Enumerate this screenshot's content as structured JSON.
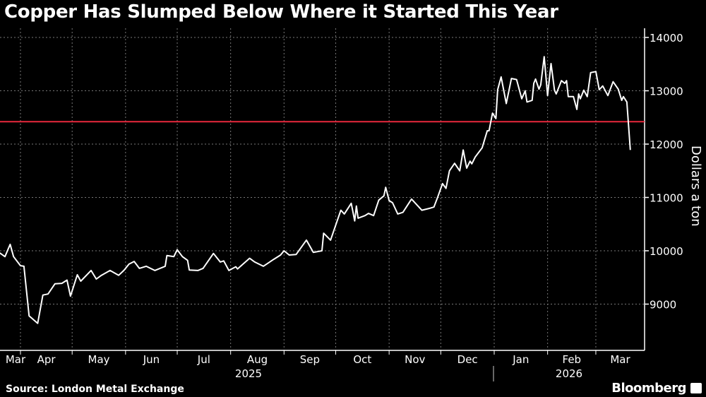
{
  "chart_data": {
    "type": "line",
    "title": "Copper Has Slumped Below Where it Started This Year",
    "ylabel": "Dollars a ton",
    "xlabel": "",
    "ylim": [
      8300,
      14200
    ],
    "yticks": [
      9000,
      10000,
      11000,
      12000,
      13000,
      14000
    ],
    "ytick_labels": [
      "9000",
      "10000",
      "11000",
      "12000",
      "13000",
      "14000"
    ],
    "xtick_labels": [
      "Mar",
      "Apr",
      "May",
      "Jun",
      "Jul",
      "Aug",
      "Sep",
      "Oct",
      "Nov",
      "Dec",
      "Jan",
      "Feb",
      "Mar"
    ],
    "year_labels": [
      "2025",
      "2026"
    ],
    "grid": true,
    "reference_line": {
      "value": 12420,
      "color": "#e8283c"
    },
    "line_color": "#ffffff",
    "series": [
      {
        "points": [
          [
            "2025-03-20",
            9960
          ],
          [
            "2025-03-23",
            9890
          ],
          [
            "2025-03-26",
            10120
          ],
          [
            "2025-03-28",
            9890
          ],
          [
            "2025-04-01",
            9720
          ],
          [
            "2025-04-03",
            9710
          ],
          [
            "2025-04-06",
            8780
          ],
          [
            "2025-04-11",
            8640
          ],
          [
            "2025-04-14",
            9170
          ],
          [
            "2025-04-17",
            9190
          ],
          [
            "2025-04-21",
            9380
          ],
          [
            "2025-04-25",
            9390
          ],
          [
            "2025-04-28",
            9450
          ],
          [
            "2025-04-30",
            9150
          ],
          [
            "2025-05-04",
            9550
          ],
          [
            "2025-05-06",
            9430
          ],
          [
            "2025-05-12",
            9630
          ],
          [
            "2025-05-15",
            9470
          ],
          [
            "2025-05-18",
            9540
          ],
          [
            "2025-05-23",
            9630
          ],
          [
            "2025-05-28",
            9540
          ],
          [
            "2025-05-31",
            9630
          ],
          [
            "2025-06-03",
            9750
          ],
          [
            "2025-06-06",
            9800
          ],
          [
            "2025-06-09",
            9670
          ],
          [
            "2025-06-13",
            9710
          ],
          [
            "2025-06-18",
            9630
          ],
          [
            "2025-06-24",
            9710
          ],
          [
            "2025-06-25",
            9910
          ],
          [
            "2025-06-29",
            9890
          ],
          [
            "2025-07-01",
            10020
          ],
          [
            "2025-07-04",
            9890
          ],
          [
            "2025-07-07",
            9820
          ],
          [
            "2025-07-08",
            9640
          ],
          [
            "2025-07-13",
            9630
          ],
          [
            "2025-07-16",
            9670
          ],
          [
            "2025-07-22",
            9950
          ],
          [
            "2025-07-26",
            9790
          ],
          [
            "2025-07-28",
            9810
          ],
          [
            "2025-07-31",
            9630
          ],
          [
            "2025-08-04",
            9700
          ],
          [
            "2025-08-05",
            9660
          ],
          [
            "2025-08-12",
            9860
          ],
          [
            "2025-08-15",
            9790
          ],
          [
            "2025-08-20",
            9710
          ],
          [
            "2025-08-26",
            9840
          ],
          [
            "2025-08-30",
            9920
          ],
          [
            "2025-09-01",
            10000
          ],
          [
            "2025-09-04",
            9920
          ],
          [
            "2025-09-08",
            9930
          ],
          [
            "2025-09-14",
            10200
          ],
          [
            "2025-09-18",
            9970
          ],
          [
            "2025-09-23",
            10000
          ],
          [
            "2025-09-24",
            10330
          ],
          [
            "2025-09-28",
            10200
          ],
          [
            "2025-10-04",
            10760
          ],
          [
            "2025-10-06",
            10690
          ],
          [
            "2025-10-10",
            10890
          ],
          [
            "2025-10-12",
            10560
          ],
          [
            "2025-10-13",
            10840
          ],
          [
            "2025-10-14",
            10610
          ],
          [
            "2025-10-18",
            10660
          ],
          [
            "2025-10-20",
            10700
          ],
          [
            "2025-10-23",
            10660
          ],
          [
            "2025-10-26",
            10950
          ],
          [
            "2025-10-29",
            11030
          ],
          [
            "2025-10-30",
            11190
          ],
          [
            "2025-11-01",
            10940
          ],
          [
            "2025-11-03",
            10900
          ],
          [
            "2025-11-06",
            10690
          ],
          [
            "2025-11-09",
            10720
          ],
          [
            "2025-11-14",
            10970
          ],
          [
            "2025-11-20",
            10760
          ],
          [
            "2025-11-25",
            10800
          ],
          [
            "2025-11-27",
            10820
          ],
          [
            "2025-11-29",
            10990
          ],
          [
            "2025-12-02",
            11260
          ],
          [
            "2025-12-04",
            11170
          ],
          [
            "2025-12-06",
            11500
          ],
          [
            "2025-12-09",
            11640
          ],
          [
            "2025-12-12",
            11500
          ],
          [
            "2025-12-14",
            11890
          ],
          [
            "2025-12-16",
            11550
          ],
          [
            "2025-12-18",
            11680
          ],
          [
            "2025-12-19",
            11630
          ],
          [
            "2025-12-21",
            11760
          ],
          [
            "2025-12-25",
            11930
          ],
          [
            "2025-12-28",
            12250
          ],
          [
            "2025-12-29",
            12250
          ],
          [
            "2025-12-31",
            12580
          ],
          [
            "2026-01-02",
            12480
          ],
          [
            "2026-01-03",
            13020
          ],
          [
            "2026-01-05",
            13260
          ],
          [
            "2026-01-08",
            12760
          ],
          [
            "2026-01-11",
            13230
          ],
          [
            "2026-01-14",
            13210
          ],
          [
            "2026-01-17",
            12850
          ],
          [
            "2026-01-19",
            13000
          ],
          [
            "2026-01-20",
            12790
          ],
          [
            "2026-01-23",
            12820
          ],
          [
            "2026-01-24",
            13140
          ],
          [
            "2026-01-25",
            13220
          ],
          [
            "2026-01-27",
            13030
          ],
          [
            "2026-01-28",
            13110
          ],
          [
            "2026-01-30",
            13640
          ],
          [
            "2026-02-01",
            12910
          ],
          [
            "2026-02-03",
            13510
          ],
          [
            "2026-02-05",
            13010
          ],
          [
            "2026-02-06",
            12940
          ],
          [
            "2026-02-09",
            13190
          ],
          [
            "2026-02-11",
            13140
          ],
          [
            "2026-02-12",
            13190
          ],
          [
            "2026-02-13",
            12890
          ],
          [
            "2026-02-16",
            12890
          ],
          [
            "2026-02-18",
            12650
          ],
          [
            "2026-02-19",
            12940
          ],
          [
            "2026-02-20",
            12850
          ],
          [
            "2026-02-22",
            13010
          ],
          [
            "2026-02-24",
            12890
          ],
          [
            "2026-02-26",
            13340
          ],
          [
            "2026-03-01",
            13360
          ],
          [
            "2026-03-03",
            13020
          ],
          [
            "2026-03-05",
            13090
          ],
          [
            "2026-03-08",
            12910
          ],
          [
            "2026-03-11",
            13170
          ],
          [
            "2026-03-14",
            13030
          ],
          [
            "2026-03-16",
            12820
          ],
          [
            "2026-03-17",
            12890
          ],
          [
            "2026-03-19",
            12790
          ],
          [
            "2026-03-21",
            11890
          ]
        ]
      }
    ]
  },
  "footer": {
    "source": "Source: London Metal Exchange",
    "brand": "Bloomberg"
  }
}
